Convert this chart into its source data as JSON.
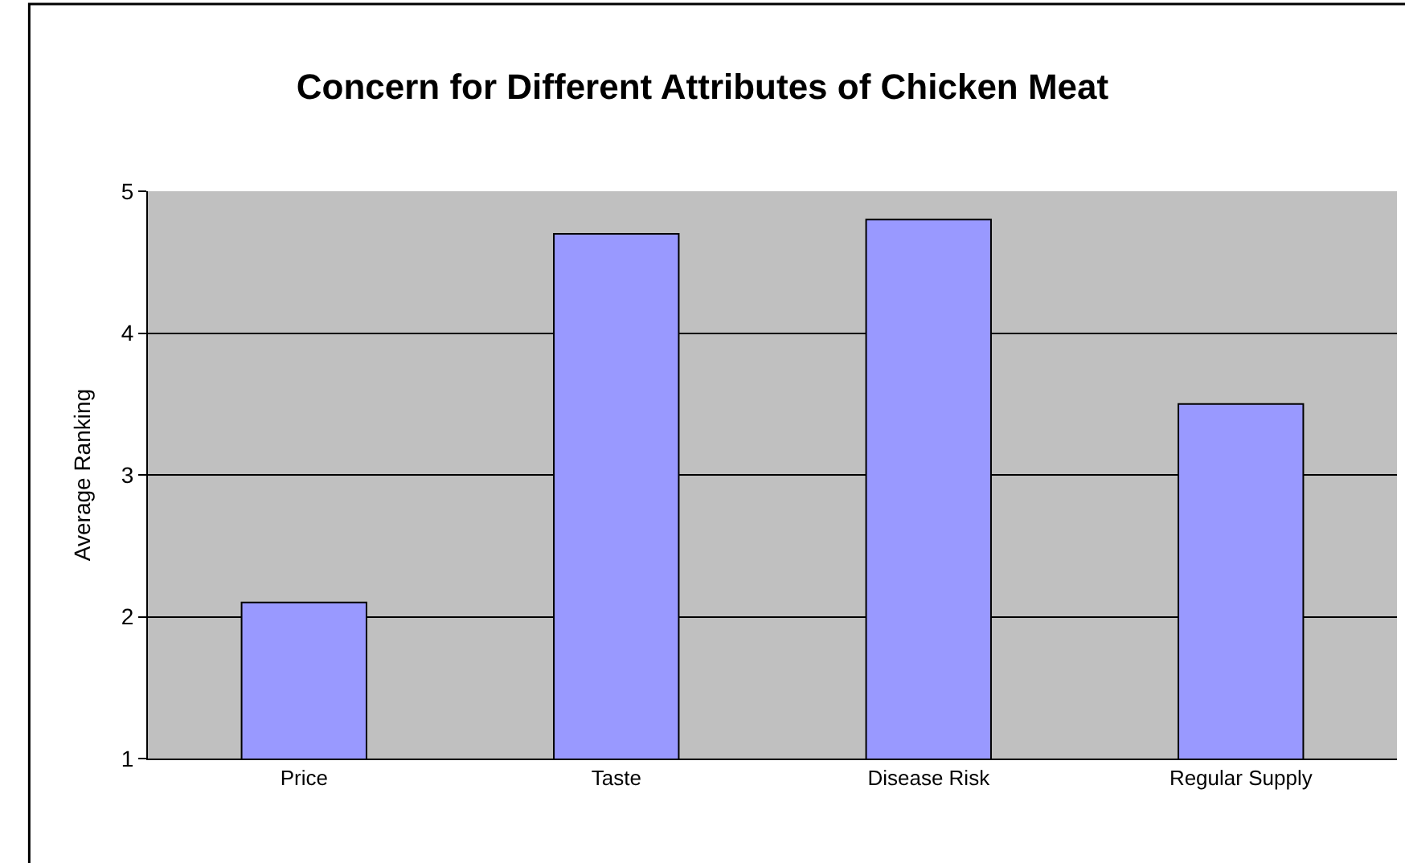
{
  "chart_data": {
    "type": "bar",
    "title": "Concern for Different Attributes of Chicken Meat",
    "ylabel": "Average Ranking",
    "categories": [
      "Price",
      "Taste",
      "Disease Risk",
      "Regular Supply"
    ],
    "values": [
      2.1,
      4.7,
      4.8,
      3.5
    ],
    "color": "#9999ff",
    "ylim": [
      1,
      5
    ],
    "yticks": [
      1,
      2,
      3,
      4,
      5
    ],
    "grid": "y",
    "legend": false
  }
}
